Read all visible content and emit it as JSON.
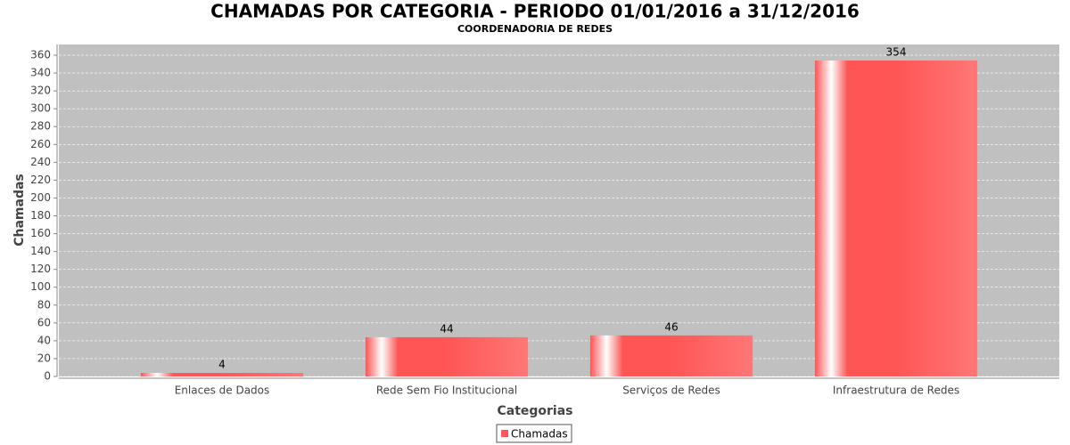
{
  "chart_data": {
    "type": "bar",
    "title": "CHAMADAS POR CATEGORIA - PERIODO 01/01/2016 a 31/12/2016",
    "subtitle": "COORDENADORIA DE REDES",
    "x_label": "Categorias",
    "y_label": "Chamadas",
    "categories": [
      "Enlaces de Dados",
      "Rede Sem Fio Institucional",
      "Serviços de Redes",
      "Infraestrutura de Redes"
    ],
    "series": [
      {
        "name": "Chamadas",
        "color": "#ff5555",
        "values": [
          4,
          44,
          46,
          354
        ]
      }
    ],
    "ylim": [
      0,
      372
    ],
    "yticks": [
      0,
      20,
      40,
      60,
      80,
      100,
      120,
      140,
      160,
      180,
      200,
      220,
      240,
      260,
      280,
      300,
      320,
      340,
      360
    ],
    "grid": true,
    "legend": "bottom"
  }
}
